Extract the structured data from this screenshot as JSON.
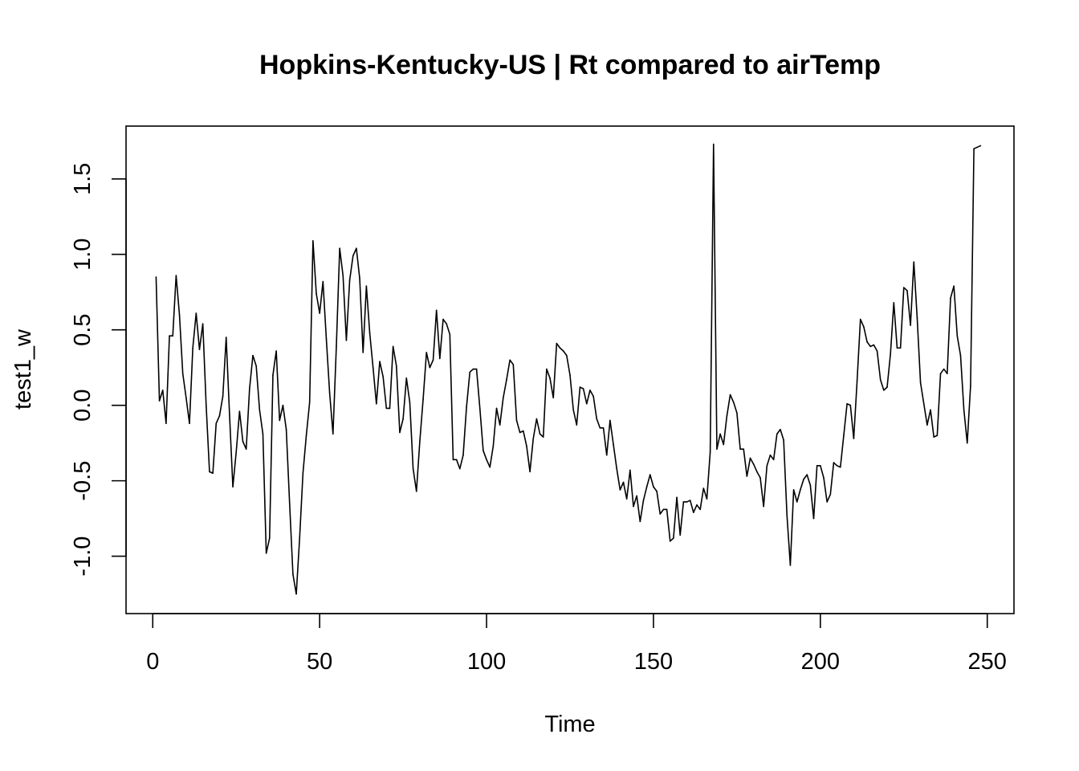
{
  "chart_data": {
    "type": "line",
    "title": "Hopkins-Kentucky-US | Rt compared to airTemp",
    "xlabel": "Time",
    "ylabel": "test1_w",
    "xlim": [
      -8,
      258
    ],
    "ylim": [
      -1.38,
      1.85
    ],
    "xticks": [
      0,
      50,
      100,
      150,
      200,
      250
    ],
    "xtick_labels": [
      "0",
      "50",
      "100",
      "150",
      "200",
      "250"
    ],
    "yticks": [
      -1.0,
      -0.5,
      0.0,
      0.5,
      1.0,
      1.5
    ],
    "ytick_labels": [
      "-1.0",
      "-0.5",
      "0.0",
      "0.5",
      "1.0",
      "1.5"
    ],
    "grid": false,
    "series": [
      {
        "x": [
          1,
          2,
          3,
          4,
          5,
          6,
          7,
          8,
          9,
          10,
          11,
          12,
          13,
          14,
          15,
          16,
          17,
          18,
          19,
          20,
          21,
          22,
          23,
          24,
          25,
          26,
          27,
          28,
          29,
          30,
          31,
          32,
          33,
          34,
          35,
          36,
          37,
          38,
          39,
          40,
          41,
          42,
          43,
          44,
          45,
          46,
          47,
          48,
          49,
          50,
          51,
          52,
          53,
          54,
          55,
          56,
          57,
          58,
          59,
          60,
          61,
          62,
          63,
          64,
          65,
          66,
          67,
          68,
          69,
          70,
          71,
          72,
          73,
          74,
          75,
          76,
          77,
          78,
          79,
          80,
          81,
          82,
          83,
          84,
          85,
          86,
          87,
          88,
          89,
          90,
          91,
          92,
          93,
          94,
          95,
          96,
          97,
          98,
          99,
          100,
          101,
          102,
          103,
          104,
          105,
          106,
          107,
          108,
          109,
          110,
          111,
          112,
          113,
          114,
          115,
          116,
          117,
          118,
          119,
          120,
          121,
          122,
          123,
          124,
          125,
          126,
          127,
          128,
          129,
          130,
          131,
          132,
          133,
          134,
          135,
          136,
          137,
          138,
          139,
          140,
          141,
          142,
          143,
          144,
          145,
          146,
          147,
          148,
          149,
          150,
          151,
          152,
          153,
          154,
          155,
          156,
          157,
          158,
          159,
          160,
          161,
          162,
          163,
          164,
          165,
          166,
          167,
          168,
          169,
          170,
          171,
          172,
          173,
          174,
          175,
          176,
          177,
          178,
          179,
          180,
          181,
          182,
          183,
          184,
          185,
          186,
          187,
          188,
          189,
          190,
          191,
          192,
          193,
          194,
          195,
          196,
          197,
          198,
          199,
          200,
          201,
          202,
          203,
          204,
          205,
          206,
          207,
          208,
          209,
          210,
          211,
          212,
          213,
          214,
          215,
          216,
          217,
          218,
          219,
          220,
          221,
          222,
          223,
          224,
          225,
          226,
          227,
          228,
          229,
          230,
          231,
          232,
          233,
          234,
          235,
          236,
          237,
          238,
          239,
          240,
          241,
          242,
          243,
          244,
          245,
          246,
          247,
          248
        ],
        "values": [
          0.85,
          0.03,
          0.1,
          -0.12,
          0.46,
          0.46,
          0.86,
          0.6,
          0.21,
          0.05,
          -0.12,
          0.38,
          0.61,
          0.37,
          0.54,
          0.0,
          -0.44,
          -0.45,
          -0.12,
          -0.07,
          0.06,
          0.45,
          -0.06,
          -0.54,
          -0.31,
          -0.04,
          -0.24,
          -0.29,
          0.11,
          0.33,
          0.26,
          -0.03,
          -0.19,
          -0.98,
          -0.88,
          0.2,
          0.36,
          -0.1,
          0.0,
          -0.16,
          -0.65,
          -1.12,
          -1.25,
          -0.88,
          -0.45,
          -0.2,
          0.02,
          1.09,
          0.74,
          0.61,
          0.82,
          0.44,
          0.08,
          -0.19,
          0.39,
          1.04,
          0.86,
          0.43,
          0.83,
          0.99,
          1.04,
          0.84,
          0.35,
          0.79,
          0.48,
          0.25,
          0.01,
          0.29,
          0.19,
          -0.02,
          -0.02,
          0.39,
          0.26,
          -0.18,
          -0.09,
          0.18,
          0.02,
          -0.42,
          -0.57,
          -0.24,
          0.04,
          0.35,
          0.25,
          0.3,
          0.63,
          0.31,
          0.57,
          0.54,
          0.47,
          -0.36,
          -0.36,
          -0.42,
          -0.33,
          -0.01,
          0.22,
          0.24,
          0.24,
          -0.02,
          -0.3,
          -0.36,
          -0.41,
          -0.27,
          -0.02,
          -0.13,
          0.05,
          0.17,
          0.3,
          0.27,
          -0.1,
          -0.18,
          -0.17,
          -0.27,
          -0.44,
          -0.22,
          -0.09,
          -0.19,
          -0.21,
          0.24,
          0.18,
          0.05,
          0.41,
          0.38,
          0.36,
          0.33,
          0.2,
          -0.03,
          -0.13,
          0.12,
          0.11,
          0.01,
          0.1,
          0.06,
          -0.09,
          -0.15,
          -0.15,
          -0.33,
          -0.1,
          -0.26,
          -0.42,
          -0.56,
          -0.51,
          -0.62,
          -0.43,
          -0.67,
          -0.6,
          -0.77,
          -0.63,
          -0.54,
          -0.46,
          -0.54,
          -0.57,
          -0.72,
          -0.69,
          -0.69,
          -0.9,
          -0.88,
          -0.61,
          -0.86,
          -0.64,
          -0.64,
          -0.63,
          -0.71,
          -0.66,
          -0.69,
          -0.55,
          -0.62,
          -0.31,
          1.73,
          -0.29,
          -0.19,
          -0.26,
          -0.07,
          0.07,
          0.02,
          -0.05,
          -0.29,
          -0.29,
          -0.47,
          -0.35,
          -0.39,
          -0.44,
          -0.48,
          -0.67,
          -0.4,
          -0.33,
          -0.36,
          -0.19,
          -0.16,
          -0.23,
          -0.73,
          -1.06,
          -0.56,
          -0.64,
          -0.56,
          -0.49,
          -0.46,
          -0.53,
          -0.75,
          -0.4,
          -0.4,
          -0.48,
          -0.64,
          -0.59,
          -0.38,
          -0.4,
          -0.41,
          -0.2,
          0.01,
          0.0,
          -0.22,
          0.16,
          0.57,
          0.52,
          0.42,
          0.39,
          0.4,
          0.36,
          0.17,
          0.1,
          0.12,
          0.34,
          0.68,
          0.38,
          0.38,
          0.78,
          0.76,
          0.53,
          0.95,
          0.58,
          0.15,
          0.01,
          -0.13,
          -0.03,
          -0.21,
          -0.2,
          0.21,
          0.24,
          0.21,
          0.71,
          0.79,
          0.46,
          0.33,
          -0.03,
          -0.25,
          0.13,
          1.7,
          1.71,
          1.72
        ]
      }
    ]
  }
}
